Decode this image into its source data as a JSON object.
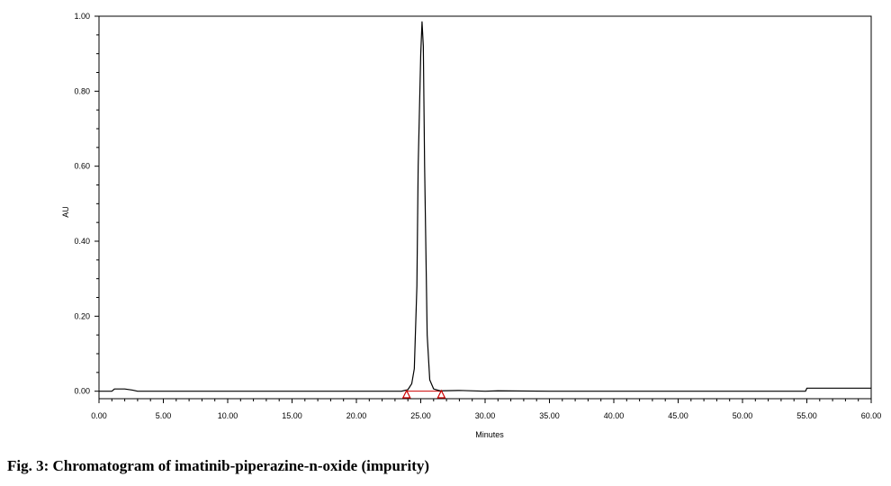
{
  "caption": "Fig. 3: Chromatogram of imatinib-piperazine-n-oxide (impurity)",
  "chart_data": {
    "type": "line",
    "title": "",
    "xlabel": "Minutes",
    "ylabel": "AU",
    "xlim": [
      0,
      60
    ],
    "ylim": [
      -0.02,
      1.0
    ],
    "xticks": [
      "0.00",
      "5.00",
      "10.00",
      "15.00",
      "20.00",
      "25.00",
      "30.00",
      "35.00",
      "40.00",
      "45.00",
      "50.00",
      "55.00",
      "60.00"
    ],
    "yticks": [
      "0.00",
      "0.20",
      "0.40",
      "0.60",
      "0.80",
      "1.00"
    ],
    "grid": false,
    "series": [
      {
        "color": "#000000",
        "x": [
          0.0,
          1.0,
          1.2,
          2.0,
          2.6,
          3.0,
          5.0,
          7.0,
          10.0,
          15.0,
          20.0,
          23.5,
          24.0,
          24.3,
          24.5,
          24.7,
          24.8,
          25.0,
          25.1,
          25.2,
          25.3,
          25.5,
          25.7,
          26.0,
          26.5,
          28.0,
          30.0,
          31.0,
          35.0,
          40.0,
          45.0,
          50.0,
          54.9,
          55.0,
          60.0
        ],
        "y": [
          0.0,
          0.0,
          0.006,
          0.006,
          0.003,
          0.0,
          0.0,
          0.0,
          0.0,
          0.0,
          0.0,
          0.0,
          0.004,
          0.02,
          0.06,
          0.28,
          0.6,
          0.9,
          0.985,
          0.92,
          0.6,
          0.15,
          0.03,
          0.006,
          0.001,
          0.002,
          0.0,
          0.001,
          0.0,
          0.0,
          0.0,
          0.0,
          0.0,
          0.008,
          0.008
        ]
      }
    ],
    "integration_markers": [
      {
        "shape": "triangle",
        "x": 23.9,
        "y": -0.008,
        "color": "#cc0000"
      },
      {
        "shape": "triangle",
        "x": 26.6,
        "y": -0.008,
        "color": "#cc0000"
      }
    ],
    "baseline_color": "#cc0000"
  }
}
